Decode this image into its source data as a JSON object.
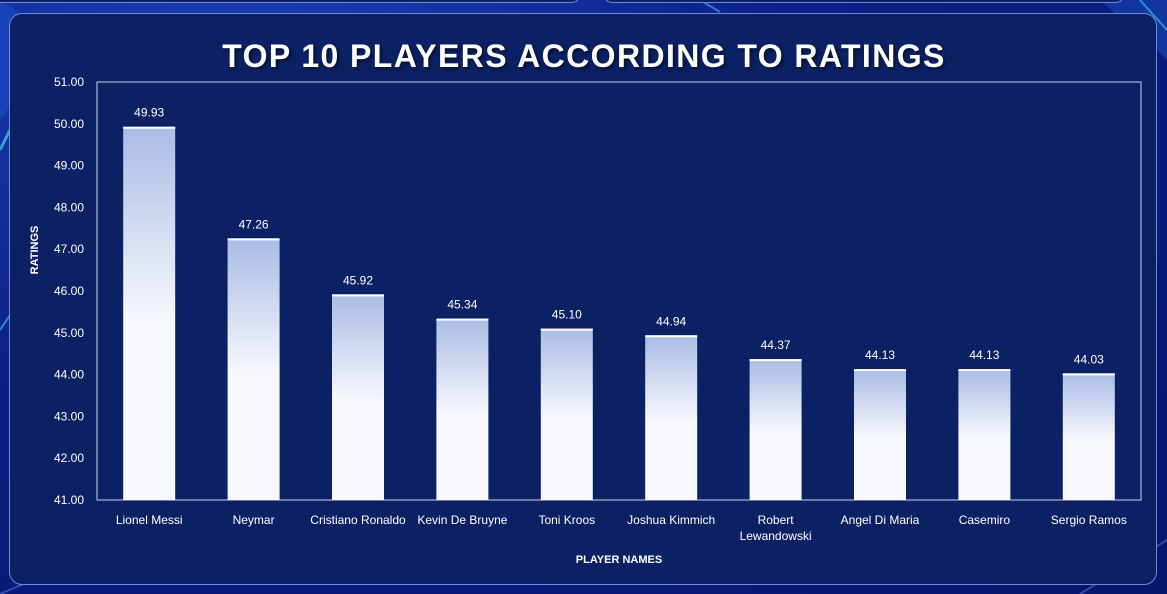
{
  "colors": {
    "background": "#0c1f86",
    "panel": "#0b2164",
    "bar_top": "#a9bce4",
    "bar_bottom": "#f7f8fd",
    "text": "#ffffff"
  },
  "chart_data": {
    "type": "bar",
    "title": "TOP 10 PLAYERS ACCORDING TO RATINGS",
    "xlabel": "PLAYER NAMES",
    "ylabel": "RATINGS",
    "categories": [
      "Lionel Messi",
      "Neymar",
      "Cristiano Ronaldo",
      "Kevin De Bruyne",
      "Toni Kroos",
      "Joshua Kimmich",
      "Robert Lewandowski",
      "Angel Di Maria",
      "Casemiro",
      "Sergio Ramos"
    ],
    "values": [
      49.93,
      47.26,
      45.92,
      45.34,
      45.1,
      44.94,
      44.37,
      44.13,
      44.13,
      44.03
    ],
    "value_labels": [
      "49.93",
      "47.26",
      "45.92",
      "45.34",
      "45.10",
      "44.94",
      "44.37",
      "44.13",
      "44.13",
      "44.03"
    ],
    "ylim": [
      41,
      51
    ],
    "y_ticks": [
      "41.00",
      "42.00",
      "43.00",
      "44.00",
      "45.00",
      "46.00",
      "47.00",
      "48.00",
      "49.00",
      "50.00",
      "51.00"
    ],
    "grid": false,
    "legend": "none"
  }
}
